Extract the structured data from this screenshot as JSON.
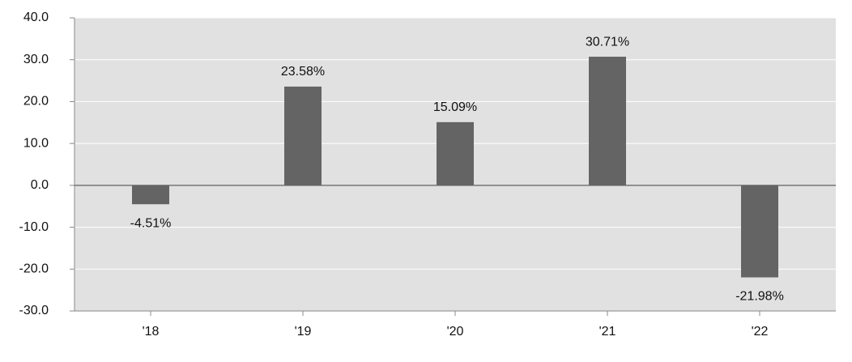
{
  "chart_data": {
    "type": "bar",
    "categories": [
      "'18",
      "'19",
      "'20",
      "'21",
      "'22"
    ],
    "values": [
      -4.51,
      23.58,
      15.09,
      30.71,
      -21.98
    ],
    "value_labels": [
      "-4.51%",
      "23.58%",
      "15.09%",
      "30.71%",
      "-21.98%"
    ],
    "color": "#646464",
    "ylim": [
      -30,
      40
    ],
    "yticks": [
      {
        "value": -30,
        "label": "-30.0"
      },
      {
        "value": -20,
        "label": "-20.0"
      },
      {
        "value": -10,
        "label": "-10.0"
      },
      {
        "value": 0,
        "label": "0.0"
      },
      {
        "value": 10,
        "label": "10.0"
      },
      {
        "value": 20,
        "label": "20.0"
      },
      {
        "value": 30,
        "label": "30.0"
      },
      {
        "value": 40,
        "label": "40.0"
      }
    ],
    "grid": true
  }
}
